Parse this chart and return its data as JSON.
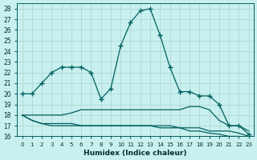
{
  "xlabel": "Humidex (Indice chaleur)",
  "ylabel": "",
  "bg_color": "#c8f0ee",
  "line_color": "#006060",
  "grid_color": "#b0d8d4",
  "xlim": [
    -0.5,
    23.5
  ],
  "ylim": [
    16,
    28.5
  ],
  "yticks": [
    16,
    17,
    18,
    19,
    20,
    21,
    22,
    23,
    24,
    25,
    26,
    27,
    28
  ],
  "xticks": [
    0,
    1,
    2,
    3,
    4,
    5,
    6,
    7,
    8,
    9,
    10,
    11,
    12,
    13,
    14,
    15,
    16,
    17,
    18,
    19,
    20,
    21,
    22,
    23
  ],
  "series": [
    [
      20.0,
      20.0,
      21.0,
      22.0,
      22.5,
      22.5,
      22.5,
      22.0,
      19.5,
      20.5,
      24.5,
      26.7,
      27.8,
      28.0,
      25.5,
      22.5,
      20.2,
      20.2,
      19.8,
      19.8,
      19.0,
      17.0,
      17.0,
      16.2
    ],
    [
      18.0,
      18.0,
      18.0,
      18.0,
      18.0,
      18.2,
      18.5,
      18.5,
      18.5,
      18.5,
      18.5,
      18.5,
      18.5,
      18.5,
      18.5,
      18.5,
      18.5,
      18.8,
      18.8,
      18.5,
      17.5,
      17.0,
      17.0,
      16.5
    ],
    [
      18.0,
      17.5,
      17.2,
      17.2,
      17.2,
      17.2,
      17.0,
      17.0,
      17.0,
      17.0,
      17.0,
      17.0,
      17.0,
      17.0,
      17.0,
      17.0,
      16.8,
      16.8,
      16.8,
      16.5,
      16.5,
      16.5,
      16.3,
      16.0
    ],
    [
      18.0,
      17.5,
      17.2,
      17.0,
      17.0,
      17.0,
      17.0,
      17.0,
      17.0,
      17.0,
      17.0,
      17.0,
      17.0,
      17.0,
      16.8,
      16.8,
      16.8,
      16.5,
      16.5,
      16.3,
      16.2,
      16.0,
      16.0,
      15.8
    ]
  ],
  "marker": "+",
  "marker_size": 4,
  "marker_linewidth": 1.0,
  "line_width": 0.9
}
